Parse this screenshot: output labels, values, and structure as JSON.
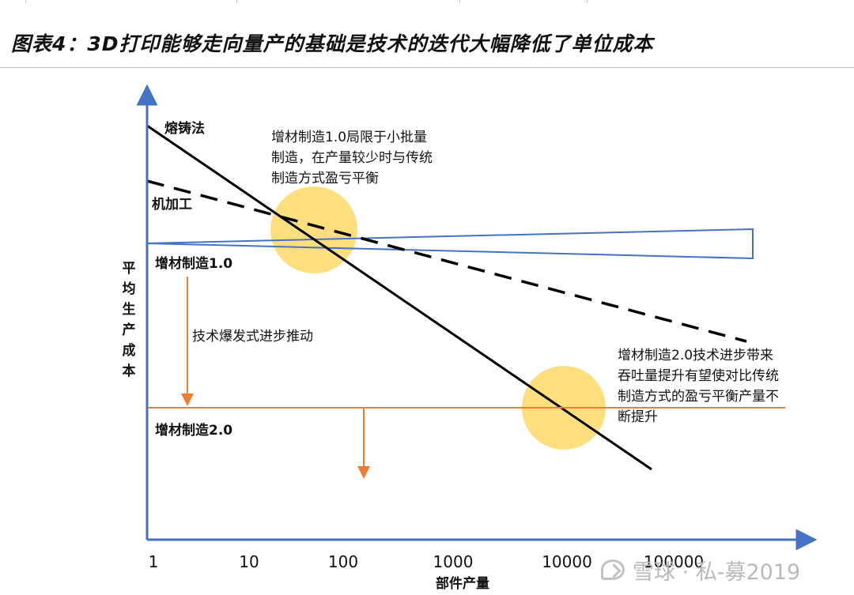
{
  "title": "图表4：3D打印能够走向量产的基础是技术的迭代大幅降低了单位成本",
  "y_axis_label": "平均生产成本",
  "x_axis_label": "部件产量",
  "x_ticks": [
    "1",
    "10",
    "100",
    "1000",
    "10000",
    "100000"
  ],
  "lines": {
    "casting": "熔铸法",
    "machining": "机加工",
    "am1": "增材制造1.0",
    "am2": "增材制造2.0"
  },
  "notes": {
    "am1_lines": [
      "增材制造1.0局限于小批量",
      "制造，在产量较少时与传统",
      "制造方式盈亏平衡"
    ],
    "push": "技术爆发式进步推动",
    "am2_lines": [
      "增材制造2.0技术进步带来",
      "吞吐量提升有望使对比传统",
      "制造方式的盈亏平衡产量不",
      "断提升"
    ]
  },
  "watermark": "雪球 · 私-募2019",
  "colors": {
    "axis": "#4472c4",
    "am1": "#4472c4",
    "am2": "#ed7d31",
    "casting": "#000000",
    "machining": "#000000",
    "highlight": "#ffd966"
  }
}
